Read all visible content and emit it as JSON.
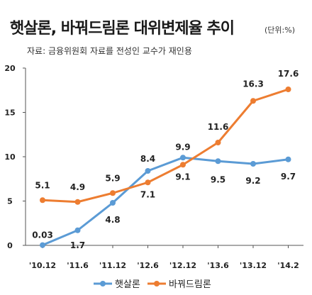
{
  "header": {
    "title": "햇살론, 바꿔드림론 대위변제율 추이",
    "unit": "(단위:%)",
    "source": "자료: 금융위원회 자료를 전성인 교수가 재인용"
  },
  "chart_data": {
    "type": "line",
    "title": "햇살론, 바꿔드림론 대위변제율 추이",
    "xlabel": "",
    "ylabel": "",
    "categories": [
      "'10.12",
      "'11.6",
      "'11.12",
      "'12.6",
      "'12.12",
      "'13.6",
      "'13.12",
      "'14.2"
    ],
    "y_ticks": [
      "0",
      "5",
      "10",
      "15",
      "20"
    ],
    "ylim": [
      0,
      20
    ],
    "grid": false,
    "legend_position": "bottom",
    "series": [
      {
        "name": "햇살론",
        "color": "#5B9BD5",
        "values": [
          0.03,
          1.7,
          4.8,
          8.4,
          9.9,
          9.5,
          9.2,
          9.7
        ],
        "labels": [
          "0.03",
          "1.7",
          "4.8",
          "8.4",
          "9.9",
          "9.5",
          "9.2",
          "9.7"
        ]
      },
      {
        "name": "바꿔드림론",
        "color": "#ED7D31",
        "values": [
          5.1,
          4.9,
          5.9,
          7.1,
          9.1,
          11.6,
          16.3,
          17.6
        ],
        "labels": [
          "5.1",
          "4.9",
          "5.9",
          "7.1",
          "9.1",
          "11.6",
          "16.3",
          "17.6"
        ]
      }
    ]
  }
}
